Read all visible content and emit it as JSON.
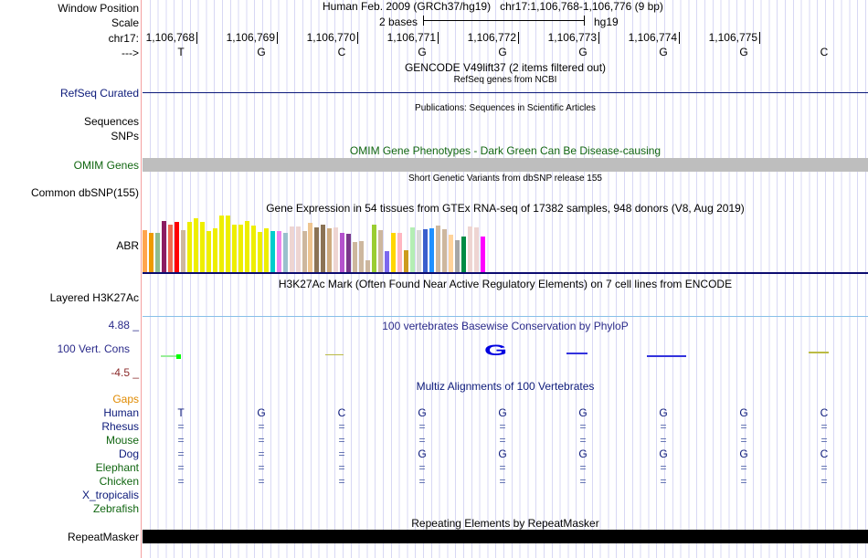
{
  "header": {
    "window_position_label": "Window Position",
    "scale_label": "Scale",
    "chrom_label": "chr17:",
    "strand_label": "--->",
    "assembly": "Human Feb. 2009 (GRCh37/hg19)",
    "position": "chr17:1,106,768-1,106,776 (9 bp)",
    "scale_text": "2 bases",
    "scale_db": "hg19"
  },
  "positions": [
    "1,106,768",
    "1,106,769",
    "1,106,770",
    "1,106,771",
    "1,106,772",
    "1,106,773",
    "1,106,774",
    "1,106,775"
  ],
  "sequence": [
    "T",
    "G",
    "C",
    "G",
    "G",
    "G",
    "G",
    "G",
    "C"
  ],
  "tracks": {
    "gencode_title": "GENCODE V49lift37 (2 items filtered out)",
    "refseq_title": "RefSeq genes from NCBI",
    "refseq_label": "RefSeq Curated",
    "pubs_title": "Publications: Sequences in Scientific Articles",
    "pubs_label": "Sequences",
    "snps_label": "SNPs",
    "omim_title": "OMIM Gene Phenotypes - Dark Green Can Be Disease-causing",
    "omim_label": "OMIM Genes",
    "dbsnp_title": "Short Genetic Variants from dbSNP release 155",
    "dbsnp_label": "Common dbSNP(155)",
    "gtex_title": "Gene Expression in 54 tissues from GTEx RNA-seq of 17382 samples, 948 donors (V8, Aug 2019)",
    "gtex_label": "ABR",
    "h3k27_title": "H3K27Ac Mark (Often Found Near Active Regulatory Elements) on 7 cell lines from ENCODE",
    "h3k27_label": "Layered H3K27Ac",
    "cons_title": "100 vertebrates Basewise Conservation by PhyloP",
    "cons_label": "100 Vert. Cons",
    "cons_max": "4.88 _",
    "cons_min": "-4.5 _",
    "multiz_title": "Multiz Alignments of 100 Vertebrates",
    "rmsk_title": "Repeating Elements by RepeatMasker",
    "rmsk_label": "RepeatMasker"
  },
  "multiz": [
    {
      "species": "Gaps",
      "color": "#e08a00",
      "bases": []
    },
    {
      "species": "Human",
      "color": "#0c1a7a",
      "bases": [
        "T",
        "G",
        "C",
        "G",
        "G",
        "G",
        "G",
        "G",
        "C"
      ]
    },
    {
      "species": "Rhesus",
      "color": "#0c1a7a",
      "bases": [
        "=",
        "=",
        "=",
        "=",
        "=",
        "=",
        "=",
        "=",
        "="
      ]
    },
    {
      "species": "Mouse",
      "color": "#116611",
      "bases": [
        "=",
        "=",
        "=",
        "=",
        "=",
        "=",
        "=",
        "=",
        "="
      ]
    },
    {
      "species": "Dog",
      "color": "#0c1a7a",
      "bases": [
        "=",
        "=",
        "=",
        "G",
        "G",
        "G",
        "G",
        "G",
        "C"
      ]
    },
    {
      "species": "Elephant",
      "color": "#116611",
      "bases": [
        "=",
        "=",
        "=",
        "=",
        "=",
        "=",
        "=",
        "=",
        "="
      ]
    },
    {
      "species": "Chicken",
      "color": "#116611",
      "bases": [
        "=",
        "=",
        "=",
        "=",
        "=",
        "=",
        "=",
        "=",
        "="
      ]
    },
    {
      "species": "X_tropicalis",
      "color": "#0c1a7a",
      "bases": []
    },
    {
      "species": "Zebrafish",
      "color": "#116611",
      "bases": []
    }
  ],
  "gtex": {
    "values": [
      0.74,
      0.7,
      0.7,
      0.9,
      0.84,
      0.89,
      0.74,
      0.89,
      0.95,
      0.89,
      0.72,
      0.77,
      1.0,
      1.0,
      0.84,
      0.84,
      0.9,
      0.82,
      0.71,
      0.77,
      0.72,
      0.72,
      0.69,
      0.81,
      0.81,
      0.72,
      0.87,
      0.79,
      0.84,
      0.77,
      0.79,
      0.69,
      0.68,
      0.53,
      0.55,
      0.21,
      0.84,
      0.74,
      0.37,
      0.69,
      0.69,
      0.38,
      0.79,
      0.74,
      0.76,
      0.77,
      0.82,
      0.76,
      0.66,
      0.56,
      0.63,
      0.81,
      0.79,
      0.63
    ],
    "colors": [
      "#ffa54f",
      "#ee9a00",
      "#8fbc8f",
      "#8b1c62",
      "#ee6a50",
      "#ff0000",
      "#cdb79e",
      "#eeee00",
      "#eeee00",
      "#eeee00",
      "#eeee00",
      "#eeee00",
      "#eeee00",
      "#eeee00",
      "#eeee00",
      "#eeee00",
      "#eeee00",
      "#eeee00",
      "#eeee00",
      "#eeee00",
      "#00cdcd",
      "#ee82ee",
      "#9ac0cd",
      "#eed5d2",
      "#eed5d2",
      "#cdb79e",
      "#eec591",
      "#8b7355",
      "#8b7355",
      "#cdaa7d",
      "#eed5d2",
      "#b452cd",
      "#7a378b",
      "#cdb79e",
      "#cdb79e",
      "#cdb79e",
      "#9acd32",
      "#cdb79e",
      "#7b68ee",
      "#ffd700",
      "#ffb6c1",
      "#cd9b1d",
      "#b4eeb4",
      "#d9d9d9",
      "#3a5fcd",
      "#1e90ff",
      "#cdb79e",
      "#cdb79e",
      "#ffd39b",
      "#a6a6a6",
      "#008b45",
      "#eed5d2",
      "#eed5d2",
      "#ff00ff"
    ]
  }
}
